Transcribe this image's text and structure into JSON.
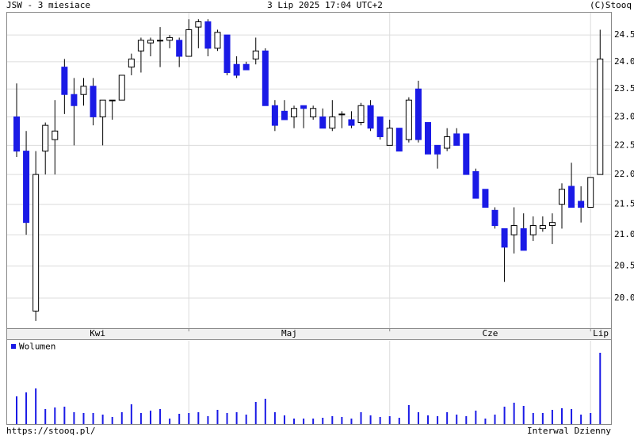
{
  "header": {
    "title": "JSW - 3 miesiace",
    "date": "3 Lip 2025 17:04 UTC+2",
    "source": "(C)Stooq"
  },
  "footer": {
    "url": "https://stooq.pl/",
    "interval": "Interwal Dzienny"
  },
  "chart_data": [
    {
      "type": "candlestick",
      "color_down": "#1a1ae6",
      "color_up": "#ffffff",
      "log_scale": true,
      "grid": true,
      "ylim": [
        19.54,
        24.94
      ],
      "yticks": [
        {
          "value": 20,
          "label": "20.0"
        },
        20.5,
        {
          "value": 21,
          "label": "21.0"
        },
        21.5,
        {
          "value": 22,
          "label": "22.0"
        },
        22.5,
        {
          "value": 23,
          "label": "23.0"
        },
        23.5,
        {
          "value": 24,
          "label": "24.0"
        },
        24.5
      ],
      "months": [
        {
          "label": "Kwi",
          "start": 0
        },
        {
          "label": "Maj",
          "start": 18
        },
        {
          "label": "Cze",
          "start": 39
        },
        {
          "label": "Lip",
          "start": 60
        }
      ],
      "open": [
        23.0,
        22.4,
        19.8,
        22.4,
        22.6,
        23.9,
        23.4,
        23.4,
        23.55,
        23.0,
        23.3,
        23.3,
        23.9,
        24.2,
        24.35,
        24.4,
        24.4,
        24.4,
        24.1,
        24.65,
        24.75,
        24.25,
        24.5,
        23.95,
        23.95,
        24.05,
        24.2,
        23.2,
        23.1,
        23.0,
        23.2,
        23.0,
        23.0,
        22.8,
        23.05,
        22.95,
        22.9,
        23.2,
        23.0,
        22.5,
        22.8,
        22.6,
        23.5,
        22.9,
        22.5,
        22.45,
        22.7,
        22.7,
        22.05,
        21.75,
        21.4,
        21.1,
        21.0,
        21.1,
        21.0,
        21.1,
        21.15,
        21.5,
        21.8,
        21.55,
        21.45,
        22.0
      ],
      "high": [
        23.6,
        22.75,
        22.4,
        22.9,
        23.3,
        24.05,
        23.7,
        23.7,
        23.7,
        23.3,
        23.3,
        23.75,
        24.15,
        24.45,
        24.45,
        24.65,
        24.5,
        24.45,
        24.8,
        24.8,
        24.8,
        24.6,
        24.5,
        24.1,
        24.0,
        24.45,
        24.25,
        23.3,
        23.3,
        23.2,
        23.2,
        23.2,
        23.15,
        23.3,
        23.1,
        23.1,
        23.25,
        23.3,
        23.0,
        22.95,
        22.8,
        23.35,
        23.65,
        22.9,
        22.5,
        22.8,
        22.8,
        22.7,
        22.1,
        21.75,
        21.45,
        21.1,
        21.45,
        21.35,
        21.3,
        21.3,
        21.35,
        21.85,
        22.2,
        21.8,
        21.95,
        24.6
      ],
      "low": [
        22.3,
        21.0,
        19.65,
        22.0,
        22.0,
        23.05,
        22.5,
        23.2,
        22.85,
        22.5,
        22.95,
        23.3,
        23.75,
        23.8,
        24.1,
        23.9,
        24.25,
        23.9,
        24.1,
        24.25,
        24.1,
        24.2,
        23.75,
        23.7,
        23.85,
        23.95,
        23.2,
        22.75,
        22.95,
        22.8,
        22.8,
        22.95,
        22.8,
        22.75,
        22.8,
        22.8,
        22.85,
        22.75,
        22.6,
        22.5,
        22.4,
        22.55,
        22.55,
        22.35,
        22.1,
        22.4,
        22.5,
        22.0,
        21.6,
        21.45,
        21.1,
        20.25,
        20.7,
        20.75,
        20.9,
        21.05,
        20.85,
        21.1,
        21.45,
        21.2,
        21.45,
        22.0
      ],
      "close": [
        22.4,
        21.2,
        22.0,
        22.85,
        22.75,
        23.4,
        23.2,
        23.55,
        23.0,
        23.3,
        23.3,
        23.75,
        24.05,
        24.4,
        24.4,
        24.4,
        24.45,
        24.1,
        24.6,
        24.75,
        24.25,
        24.55,
        23.8,
        23.75,
        23.85,
        24.2,
        23.2,
        22.85,
        22.95,
        23.15,
        23.15,
        23.15,
        22.8,
        23.0,
        23.05,
        22.85,
        23.2,
        22.8,
        22.65,
        22.8,
        22.4,
        23.3,
        22.6,
        22.35,
        22.35,
        22.65,
        22.5,
        22.0,
        21.6,
        21.45,
        21.15,
        20.8,
        21.15,
        20.75,
        21.15,
        21.15,
        21.2,
        21.75,
        21.45,
        21.45,
        21.95,
        24.05
      ]
    },
    {
      "type": "bar",
      "legend": "Wolumen",
      "color": "#1a1ae6",
      "ylim": [
        0,
        106
      ],
      "values": [
        35,
        40,
        45,
        19,
        21,
        22,
        15,
        14,
        14,
        12,
        9,
        15,
        25,
        14,
        17,
        19,
        7,
        13,
        14,
        15,
        10,
        18,
        14,
        15,
        12,
        28,
        32,
        15,
        11,
        7,
        7,
        7,
        8,
        10,
        9,
        7,
        15,
        11,
        9,
        10,
        8,
        24,
        15,
        11,
        10,
        15,
        12,
        10,
        17,
        7,
        12,
        22,
        27,
        23,
        14,
        14,
        18,
        20,
        19,
        12,
        14,
        90
      ]
    }
  ]
}
